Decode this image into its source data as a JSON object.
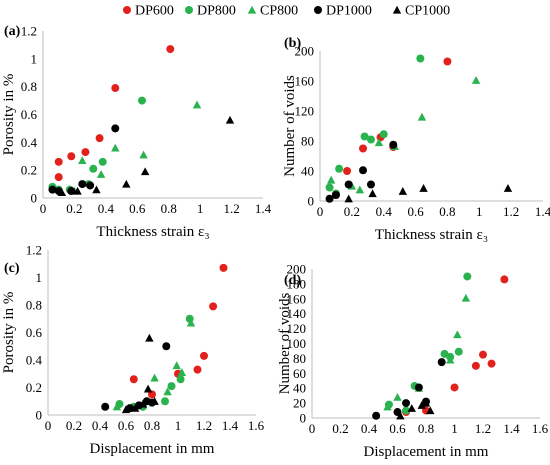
{
  "legend": [
    {
      "name": "DP600",
      "color": "#e3211c",
      "marker": "circle"
    },
    {
      "name": "DP800",
      "color": "#2ab24e",
      "marker": "circle"
    },
    {
      "name": "CP800",
      "color": "#2ab24e",
      "marker": "triangle"
    },
    {
      "name": "DP1000",
      "color": "#000000",
      "marker": "circle"
    },
    {
      "name": "CP1000",
      "color": "#000000",
      "marker": "triangle"
    }
  ],
  "chart_data": [
    {
      "panel": "(a)",
      "type": "scatter",
      "xlabel": "Thickness strain ε₃",
      "ylabel": "Porosity in %",
      "xlim": [
        0,
        1.4
      ],
      "ylim": [
        0,
        1.2
      ],
      "xticks": [
        "0",
        "0.2",
        "0.4",
        "0.6",
        "0.8",
        "1",
        "1.2",
        "1.4"
      ],
      "yticks": [
        "0",
        "0.2",
        "0.4",
        "0.6",
        "0.8",
        "1",
        "1.2"
      ],
      "series": [
        {
          "name": "DP600",
          "points": [
            [
              0.1,
              0.26
            ],
            [
              0.1,
              0.15
            ],
            [
              0.18,
              0.3
            ],
            [
              0.27,
              0.33
            ],
            [
              0.36,
              0.43
            ],
            [
              0.46,
              0.79
            ],
            [
              0.81,
              1.07
            ]
          ]
        },
        {
          "name": "DP800",
          "points": [
            [
              0.06,
              0.08
            ],
            [
              0.1,
              0.06
            ],
            [
              0.17,
              0.06
            ],
            [
              0.29,
              0.1
            ],
            [
              0.32,
              0.21
            ],
            [
              0.38,
              0.26
            ],
            [
              0.63,
              0.7
            ]
          ]
        },
        {
          "name": "CP800",
          "points": [
            [
              0.07,
              0.07
            ],
            [
              0.2,
              0.05
            ],
            [
              0.25,
              0.27
            ],
            [
              0.37,
              0.17
            ],
            [
              0.46,
              0.36
            ],
            [
              0.64,
              0.31
            ],
            [
              0.98,
              0.67
            ]
          ]
        },
        {
          "name": "DP1000",
          "points": [
            [
              0.06,
              0.06
            ],
            [
              0.1,
              0.05
            ],
            [
              0.18,
              0.05
            ],
            [
              0.25,
              0.1
            ],
            [
              0.3,
              0.09
            ],
            [
              0.46,
              0.5
            ]
          ]
        },
        {
          "name": "CP1000",
          "points": [
            [
              0.12,
              0.04
            ],
            [
              0.22,
              0.05
            ],
            [
              0.34,
              0.06
            ],
            [
              0.53,
              0.1
            ],
            [
              0.65,
              0.19
            ],
            [
              1.19,
              0.56
            ]
          ]
        }
      ]
    },
    {
      "panel": "(b)",
      "type": "scatter",
      "xlabel": "Thickness strain ε₃",
      "ylabel": "Number of voids",
      "xlim": [
        0,
        1.4
      ],
      "ylim": [
        0,
        200
      ],
      "xticks": [
        "0",
        "0.2",
        "0.4",
        "0.6",
        "0.8",
        "1",
        "1.2",
        "1.4"
      ],
      "yticks": [
        "0",
        "40",
        "80",
        "120",
        "160",
        "200"
      ],
      "series": [
        {
          "name": "DP600",
          "points": [
            [
              0.1,
              8
            ],
            [
              0.17,
              40
            ],
            [
              0.27,
              70
            ],
            [
              0.38,
              85
            ],
            [
              0.46,
              72
            ],
            [
              0.8,
              186
            ]
          ]
        },
        {
          "name": "DP800",
          "points": [
            [
              0.06,
              18
            ],
            [
              0.1,
              10
            ],
            [
              0.12,
              43
            ],
            [
              0.28,
              86
            ],
            [
              0.32,
              82
            ],
            [
              0.4,
              89
            ],
            [
              0.63,
              190
            ]
          ]
        },
        {
          "name": "CP800",
          "points": [
            [
              0.07,
              28
            ],
            [
              0.2,
              20
            ],
            [
              0.25,
              15
            ],
            [
              0.37,
              78
            ],
            [
              0.47,
              73
            ],
            [
              0.64,
              112
            ],
            [
              0.98,
              161
            ]
          ]
        },
        {
          "name": "DP1000",
          "points": [
            [
              0.06,
              3
            ],
            [
              0.1,
              8
            ],
            [
              0.18,
              22
            ],
            [
              0.27,
              41
            ],
            [
              0.32,
              22
            ],
            [
              0.46,
              75
            ]
          ]
        },
        {
          "name": "CP1000",
          "points": [
            [
              0.18,
              3
            ],
            [
              0.33,
              10
            ],
            [
              0.52,
              13
            ],
            [
              0.65,
              17
            ],
            [
              1.18,
              17
            ]
          ]
        }
      ]
    },
    {
      "panel": "(c)",
      "type": "scatter",
      "xlabel": "Displacement in mm",
      "ylabel": "Porosity in %",
      "xlim": [
        0,
        1.6
      ],
      "ylim": [
        0,
        1.2
      ],
      "xticks": [
        "0",
        "0.2",
        "0.4",
        "0.6",
        "0.8",
        "1",
        "1.2",
        "1.4",
        "1.6"
      ],
      "yticks": [
        "0",
        "0.2",
        "0.4",
        "0.6",
        "0.8",
        "1",
        "1.2"
      ],
      "series": [
        {
          "name": "DP600",
          "points": [
            [
              0.66,
              0.26
            ],
            [
              0.8,
              0.15
            ],
            [
              1.0,
              0.3
            ],
            [
              1.15,
              0.33
            ],
            [
              1.2,
              0.43
            ],
            [
              1.27,
              0.79
            ],
            [
              1.35,
              1.07
            ]
          ]
        },
        {
          "name": "DP800",
          "points": [
            [
              0.55,
              0.08
            ],
            [
              0.66,
              0.06
            ],
            [
              0.73,
              0.06
            ],
            [
              0.9,
              0.1
            ],
            [
              0.95,
              0.21
            ],
            [
              1.02,
              0.26
            ],
            [
              1.09,
              0.7
            ]
          ]
        },
        {
          "name": "CP800",
          "points": [
            [
              0.53,
              0.06
            ],
            [
              0.62,
              0.05
            ],
            [
              0.82,
              0.27
            ],
            [
              0.92,
              0.17
            ],
            [
              0.99,
              0.36
            ],
            [
              1.03,
              0.31
            ],
            [
              1.1,
              0.67
            ]
          ]
        },
        {
          "name": "DP1000",
          "points": [
            [
              0.44,
              0.06
            ],
            [
              0.63,
              0.05
            ],
            [
              0.7,
              0.07
            ],
            [
              0.76,
              0.1
            ],
            [
              0.8,
              0.09
            ],
            [
              0.91,
              0.5
            ]
          ]
        },
        {
          "name": "CP1000",
          "points": [
            [
              0.6,
              0.04
            ],
            [
              0.67,
              0.05
            ],
            [
              0.73,
              0.08
            ],
            [
              0.77,
              0.19
            ],
            [
              0.78,
              0.56
            ],
            [
              0.82,
              0.1
            ]
          ]
        }
      ]
    },
    {
      "panel": "(d)",
      "type": "scatter",
      "xlabel": "Displacement in mm",
      "ylabel": "Number of voids",
      "xlim": [
        0,
        1.6
      ],
      "ylim": [
        0,
        200
      ],
      "xticks": [
        "0",
        "0.2",
        "0.4",
        "0.6",
        "0.8",
        "1",
        "1.2",
        "1.4",
        "1.6"
      ],
      "yticks": [
        "0",
        "20",
        "40",
        "60",
        "80",
        "100",
        "120",
        "140",
        "160",
        "180",
        "200"
      ],
      "series": [
        {
          "name": "DP600",
          "points": [
            [
              0.66,
              8
            ],
            [
              0.8,
              10
            ],
            [
              1.0,
              41
            ],
            [
              1.15,
              70
            ],
            [
              1.2,
              85
            ],
            [
              1.26,
              73
            ],
            [
              1.35,
              186
            ]
          ]
        },
        {
          "name": "DP800",
          "points": [
            [
              0.54,
              18
            ],
            [
              0.66,
              10
            ],
            [
              0.72,
              43
            ],
            [
              0.93,
              86
            ],
            [
              0.97,
              82
            ],
            [
              1.03,
              89
            ],
            [
              1.09,
              190
            ]
          ]
        },
        {
          "name": "CP800",
          "points": [
            [
              0.53,
              15
            ],
            [
              0.6,
              28
            ],
            [
              0.75,
              40
            ],
            [
              0.97,
              78
            ],
            [
              1.02,
              112
            ],
            [
              1.08,
              161
            ]
          ]
        },
        {
          "name": "DP1000",
          "points": [
            [
              0.45,
              3
            ],
            [
              0.6,
              8
            ],
            [
              0.66,
              20
            ],
            [
              0.75,
              41
            ],
            [
              0.8,
              22
            ],
            [
              0.91,
              75
            ]
          ]
        },
        {
          "name": "CP1000",
          "points": [
            [
              0.62,
              3
            ],
            [
              0.7,
              13
            ],
            [
              0.77,
              17
            ],
            [
              0.8,
              20
            ],
            [
              0.83,
              10
            ]
          ]
        }
      ]
    }
  ]
}
